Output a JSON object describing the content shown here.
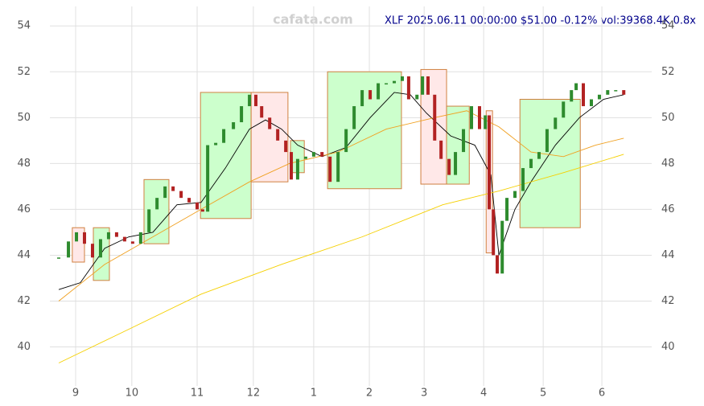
{
  "chart_data": {
    "type": "candlestick",
    "title": "XLF 2025.06.11 00:00:00 $51.00 -0.12% vol:39368.4K 0.8x",
    "watermark": "cafata.com",
    "x": [
      -6.1,
      -2.6,
      0.3,
      3.2,
      6.1,
      9.0,
      11.9,
      14.8,
      17.7,
      20.6,
      23.5,
      26.5,
      29.4,
      32.3,
      35.2,
      38.1,
      41.0,
      43.9,
      45.9,
      47.7,
      50.6,
      53.5,
      57.0,
      59.9,
      62.8,
      65.1,
      67.2,
      70.1,
      73.0,
      75.9,
      77.9,
      80.2,
      83.1,
      86.0,
      89.0,
      91.9,
      94.8,
      97.7,
      100.6,
      103.5,
      106.4,
      109.3,
      112.2,
      115.1,
      118.0,
      120.3,
      123.3,
      125.3,
      127.3,
      129.7,
      132.0,
      134.9,
      137.2,
      140.1,
      143.0,
      145.9,
      148.0,
      149.4,
      150.9,
      152.3,
      154.1,
      155.8,
      158.7,
      161.6,
      164.5,
      167.4,
      170.3,
      173.3,
      176.2,
      179.1,
      180.8,
      183.4,
      186.3,
      189.2,
      192.2,
      195.1,
      198.0
    ],
    "close": [
      43.9,
      44.6,
      45.0,
      44.5,
      43.9,
      44.7,
      45.0,
      44.8,
      44.6,
      44.5,
      45.0,
      46.0,
      46.5,
      47.0,
      46.8,
      46.5,
      46.3,
      46.0,
      45.9,
      48.8,
      48.9,
      49.5,
      49.8,
      50.5,
      51.0,
      50.5,
      50.0,
      49.5,
      49.0,
      48.5,
      47.3,
      48.2,
      48.3,
      48.5,
      48.3,
      47.2,
      48.5,
      49.5,
      50.5,
      51.2,
      50.8,
      51.5,
      51.5,
      51.6,
      51.8,
      50.8,
      51.0,
      51.8,
      51.0,
      49.0,
      48.2,
      47.5,
      48.5,
      49.5,
      50.5,
      49.5,
      50.1,
      46.0,
      44.0,
      43.2,
      45.5,
      46.5,
      46.8,
      47.8,
      48.2,
      48.5,
      49.5,
      50.0,
      50.7,
      51.2,
      51.5,
      50.5,
      50.8,
      51.0,
      51.2,
      51.2,
      51.0
    ],
    "up_color": "#2e8b2e",
    "down_color": "#b22222",
    "lines": [
      {
        "color": "#000000",
        "x": [
          -6.1,
          1.7,
          10.5,
          19.2,
          27.9,
          36.6,
          45.3,
          54.1,
          62.8,
          68.6,
          74.4,
          80.2,
          89.0,
          97.7,
          106.4,
          115.1,
          120.9,
          126.7,
          135.5,
          144.2,
          150.0,
          152.9,
          158.7,
          164.5,
          173.3,
          182.0,
          190.7,
          198.0
        ],
        "values": [
          42.5,
          42.8,
          44.3,
          44.8,
          45.0,
          46.2,
          46.3,
          47.8,
          49.5,
          49.9,
          49.5,
          48.8,
          48.3,
          48.7,
          50.0,
          51.1,
          51.0,
          50.2,
          49.2,
          48.8,
          47.5,
          44.0,
          46.0,
          47.2,
          48.8,
          50.0,
          50.8,
          51.0
        ]
      },
      {
        "color": "#f0a020",
        "x": [
          -6.1,
          10.5,
          27.9,
          45.3,
          62.8,
          77.3,
          94.8,
          112.2,
          129.7,
          141.3,
          152.9,
          164.5,
          176.2,
          187.8,
          198.0
        ],
        "values": [
          42.0,
          43.6,
          44.8,
          46.0,
          47.2,
          48.0,
          48.5,
          49.5,
          50.0,
          50.3,
          49.6,
          48.5,
          48.3,
          48.8,
          49.1
        ]
      },
      {
        "color": "#f5d000",
        "x": [
          -6.1,
          16.3,
          45.3,
          74.4,
          103.5,
          132.6,
          152.9,
          176.2,
          198.0
        ],
        "values": [
          39.3,
          40.6,
          42.3,
          43.6,
          44.8,
          46.2,
          46.8,
          47.6,
          48.4
        ]
      }
    ],
    "zones": [
      {
        "x": [
          -1.2,
          3.2
        ],
        "range": [
          43.7,
          45.2
        ],
        "color": "red"
      },
      {
        "x": [
          6.4,
          12.2
        ],
        "range": [
          42.9,
          45.2
        ],
        "color": "green"
      },
      {
        "x": [
          24.7,
          33.7
        ],
        "range": [
          44.5,
          47.3
        ],
        "color": "green"
      },
      {
        "x": [
          45.1,
          63.4
        ],
        "range": [
          45.6,
          51.1
        ],
        "color": "green"
      },
      {
        "x": [
          63.4,
          76.7
        ],
        "range": [
          47.2,
          51.1
        ],
        "color": "red"
      },
      {
        "x": [
          77.6,
          82.6
        ],
        "range": [
          47.6,
          49.0
        ],
        "color": "green"
      },
      {
        "x": [
          91.0,
          117.7
        ],
        "range": [
          46.9,
          52.0
        ],
        "color": "green"
      },
      {
        "x": [
          124.7,
          134.0
        ],
        "range": [
          47.1,
          52.1
        ],
        "color": "red"
      },
      {
        "x": [
          134.0,
          142.2
        ],
        "range": [
          47.1,
          50.5
        ],
        "color": "green"
      },
      {
        "x": [
          148.3,
          150.6
        ],
        "range": [
          44.1,
          50.3
        ],
        "color": "red"
      },
      {
        "x": [
          160.5,
          182.3
        ],
        "range": [
          45.2,
          50.8
        ],
        "color": "green"
      }
    ],
    "xlim": [
      -9.3,
      208.1
    ],
    "xticks": [
      {
        "value": 0,
        "label": "9"
      },
      {
        "value": 20.3,
        "label": "10"
      },
      {
        "value": 43.9,
        "label": "11"
      },
      {
        "value": 64.2,
        "label": "12"
      },
      {
        "value": 86.0,
        "label": "1"
      },
      {
        "value": 106.1,
        "label": "2"
      },
      {
        "value": 125.9,
        "label": "3"
      },
      {
        "value": 147.4,
        "label": "4"
      },
      {
        "value": 168.9,
        "label": "5"
      },
      {
        "value": 190.1,
        "label": "6"
      }
    ],
    "ylim": [
      38.3,
      54.85
    ],
    "yticks": [
      40,
      42,
      44,
      46,
      48,
      50,
      52,
      54
    ],
    "grid": true
  }
}
